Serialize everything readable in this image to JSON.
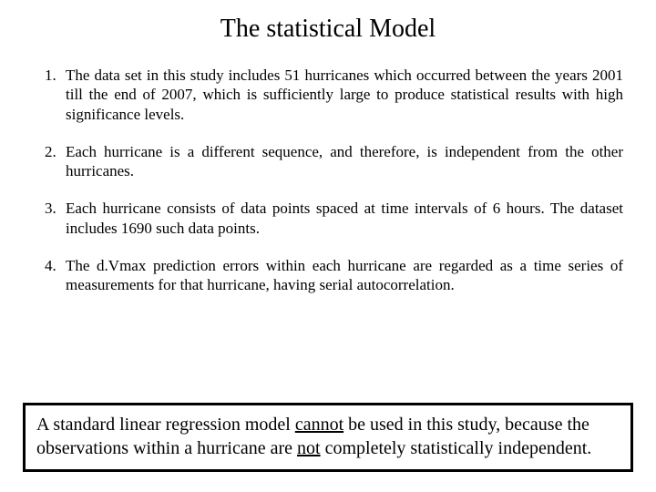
{
  "title": "The statistical Model",
  "points": [
    "The data set in this study includes 51 hurricanes which  occurred between the years 2001 till the end of 2007, which is sufficiently large to produce statistical results with high significance levels.",
    "Each hurricane is a different sequence, and therefore, is independent from the other hurricanes.",
    "Each hurricane consists of data points spaced at time intervals of 6 hours. The dataset includes 1690 such data points.",
    "The d.Vmax prediction errors within each hurricane are regarded as a time series of measurements for that hurricane, having serial autocorrelation."
  ],
  "callout": {
    "seg1": "A standard linear regression model ",
    "u1": "cannot",
    "seg2": " be used in this study, because the observations within a hurricane are ",
    "u2": "not",
    "seg3": " completely statistically independent."
  },
  "style": {
    "title_fontsize": 28,
    "body_fontsize": 17,
    "callout_fontsize": 20,
    "text_color": "#000000",
    "background_color": "#ffffff",
    "callout_border_color": "#000000",
    "callout_border_width": 3
  }
}
